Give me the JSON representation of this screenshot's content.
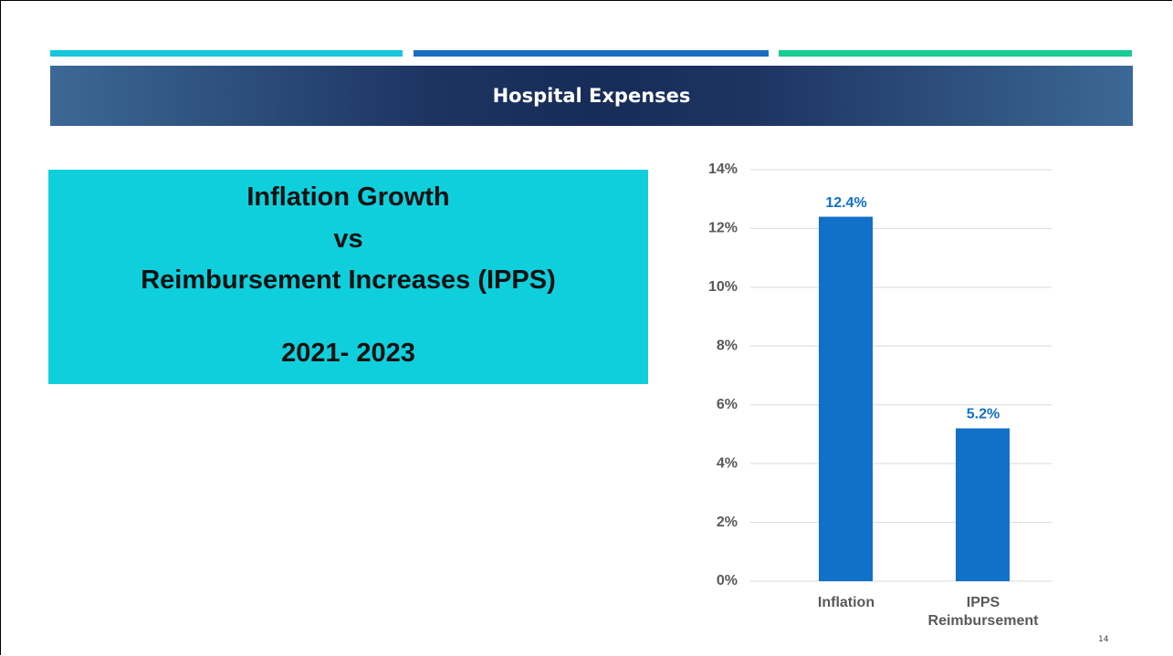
{
  "slide": {
    "banner": "Hospital Expenses",
    "box_lines": [
      "Inflation Growth",
      "vs",
      "Reimbursement Increases (IPPS)",
      "2021- 2023"
    ],
    "page_number": "14"
  },
  "chart_data": {
    "type": "bar",
    "categories": [
      "Inflation",
      "IPPS Reimbursement"
    ],
    "values": [
      12.4,
      5.2
    ],
    "value_labels": [
      "12.4%",
      "5.2%"
    ],
    "color": "#1170c8",
    "ylim": [
      0,
      14
    ],
    "yticks": [
      {
        "value": 0,
        "label": "0%"
      },
      {
        "value": 2,
        "label": "2%"
      },
      {
        "value": 4,
        "label": "4%"
      },
      {
        "value": 6,
        "label": "6%"
      },
      {
        "value": 8,
        "label": "8%"
      },
      {
        "value": 10,
        "label": "10%"
      },
      {
        "value": 12,
        "label": "12%"
      },
      {
        "value": 14,
        "label": "14%"
      }
    ],
    "grid": true
  }
}
